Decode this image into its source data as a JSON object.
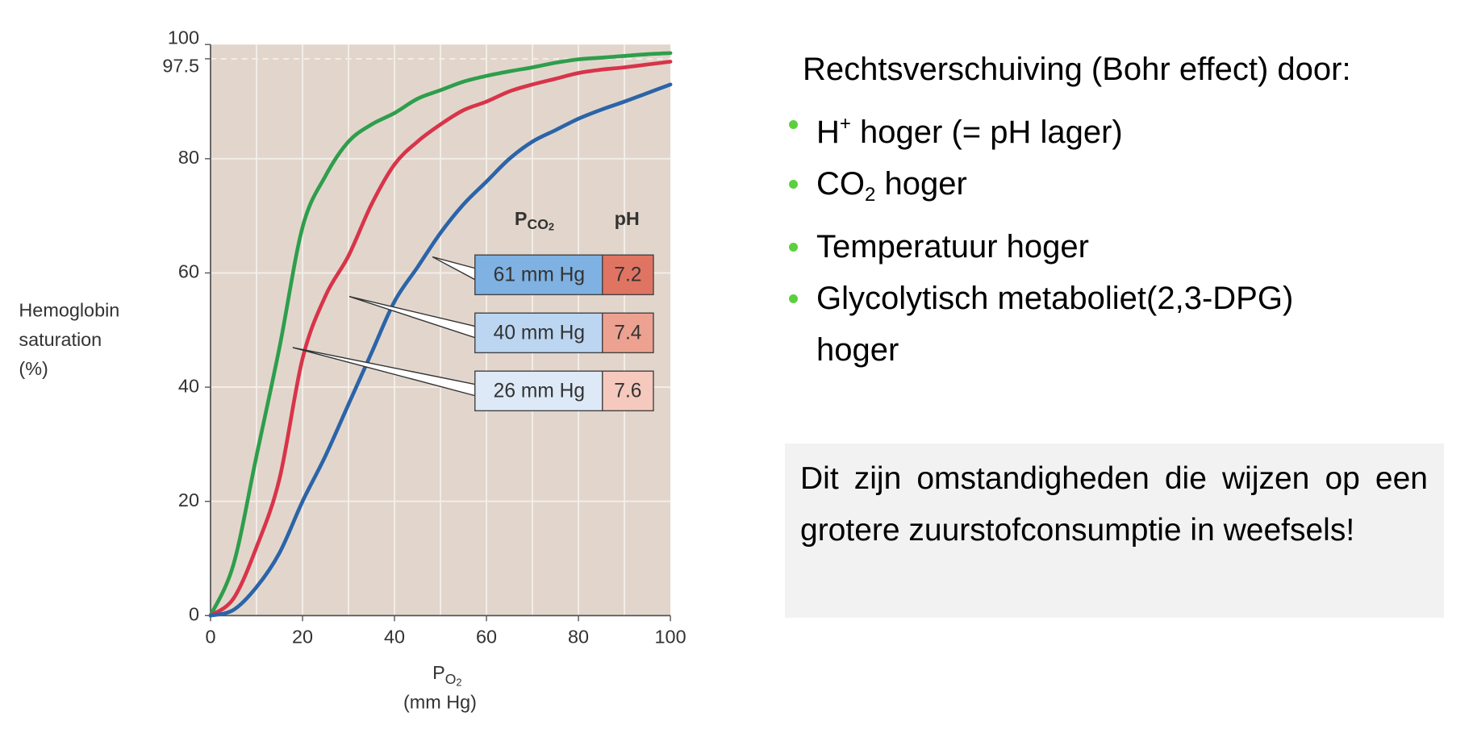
{
  "chart_data": {
    "type": "line",
    "x": [
      0,
      5,
      10,
      15,
      20,
      25,
      30,
      35,
      40,
      45,
      50,
      55,
      60,
      65,
      70,
      75,
      80,
      85,
      90,
      95,
      100
    ],
    "xlim": [
      0,
      100
    ],
    "ylim": [
      0,
      100
    ],
    "xticks": [
      0,
      20,
      40,
      60,
      80,
      100
    ],
    "yticks": [
      0,
      20,
      40,
      60,
      80,
      97.5,
      100
    ],
    "grid": true,
    "background": "#e2d6cc",
    "x_label": {
      "main": "P",
      "sub": "O",
      "subsub": "2",
      "line2": "(mm Hg)"
    },
    "y_label": [
      "Hemoglobin",
      "saturation",
      "(%)"
    ],
    "legend_header": {
      "pco2": {
        "main": "P",
        "sub": "CO",
        "subsub": "2"
      },
      "ph": "pH"
    },
    "series": [
      {
        "name": "26 mm Hg",
        "ph": "7.6",
        "color": "#2e9e4c",
        "box_color": "#dde9f7",
        "ph_color": "#f5c9bd",
        "values": [
          0,
          9,
          28,
          47,
          68,
          77,
          83,
          86,
          88,
          90.5,
          92,
          93.5,
          94.5,
          95.3,
          96,
          96.8,
          97.4,
          97.7,
          98,
          98.3,
          98.5
        ]
      },
      {
        "name": "40 mm Hg",
        "ph": "7.4",
        "color": "#d8344a",
        "box_color": "#bcd6f1",
        "ph_color": "#eda291",
        "values": [
          0,
          3,
          12,
          24,
          45,
          56,
          63,
          72,
          79,
          83,
          86,
          88.5,
          90,
          91.8,
          93,
          94,
          95,
          95.6,
          96,
          96.5,
          97
        ]
      },
      {
        "name": "61 mm Hg",
        "ph": "7.2",
        "color": "#2b64a8",
        "box_color": "#7fb1e2",
        "ph_color": "#e07462",
        "values": [
          0,
          1,
          5,
          11,
          20,
          28,
          37,
          46,
          55,
          61,
          67,
          72,
          76,
          80,
          83,
          85,
          87,
          88.6,
          90,
          91.5,
          93
        ]
      }
    ]
  },
  "slide": {
    "heading": "Rechtsverschuiving (Bohr effect) door:",
    "bullets": [
      [
        {
          "text": "H"
        },
        {
          "text": "+",
          "style": "sup"
        },
        {
          "text": " hoger (= pH lager)"
        }
      ],
      [
        {
          "text": "CO"
        },
        {
          "text": "2",
          "style": "sub"
        },
        {
          "text": " hoger"
        }
      ],
      [
        {
          "text": "Temperatuur hoger"
        }
      ],
      [
        {
          "text": "Glycolytisch metaboliet(2,3-DPG)"
        },
        {
          "text": "hoger",
          "style": "line"
        }
      ]
    ],
    "note": "Dit zijn omstandigheden die wijzen op een grotere zuurstofconsumptie in weefsels!"
  }
}
